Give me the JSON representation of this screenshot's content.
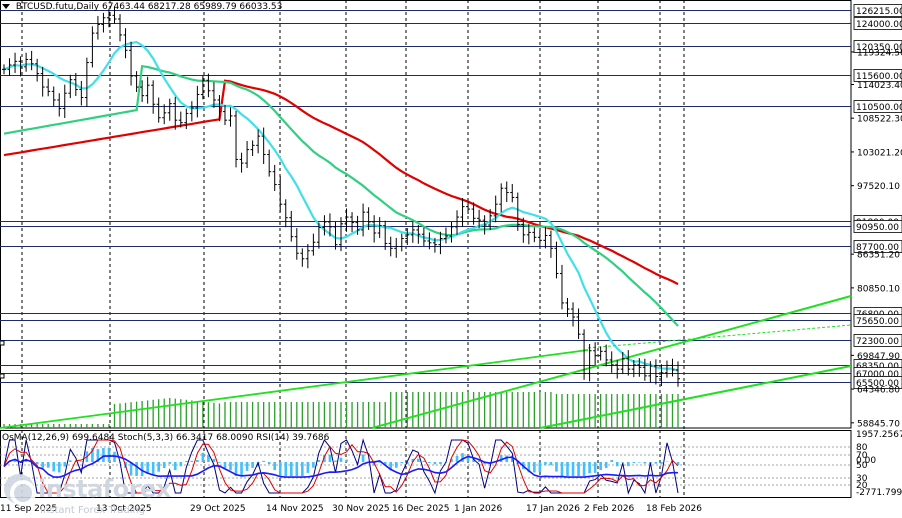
{
  "header": {
    "symbol": "BTCUSD.futu,Daily",
    "ohlc": "67463.44 68217.28 65989.79 66033.53"
  },
  "indicators": {
    "osma": "OsMA(12,26,9)",
    "osma_value": "699.6484",
    "stoch": "Stoch(5,3,3)",
    "stoch_main": "66.3417",
    "stoch_signal": "68.0090",
    "rsi": "RSI(14)",
    "rsi_value": "39.7686"
  },
  "logo": {
    "name": "instaforex",
    "tagline": "Instant Forex Trading"
  },
  "colors": {
    "ma_red": "#e00000",
    "ma_green": "#30d080",
    "ma_cyan": "#40e0e8",
    "channel": "#20e020",
    "bars": "#2aa02a",
    "hist": "#40c0ff",
    "stoch_main": "#000080",
    "stoch_signal": "#e00000",
    "rsi": "#1a1aff"
  },
  "chart_data": {
    "type": "candlestick",
    "x_ticks": [
      "11 Sep 2025",
      "13 Oct 2025",
      "29 Oct 2025",
      "14 Nov 2025",
      "30 Nov 2025",
      "16 Dec 2025",
      "1 Jan 2026",
      "17 Jan 2026",
      "2 Feb 2026",
      "18 Feb 2026"
    ],
    "y_ticks": [
      "126215.00",
      "124000.00",
      "120350.00",
      "119324.50",
      "115600.00",
      "114023.40",
      "110500.00",
      "108522.30",
      "103021.20",
      "97520.10",
      "91800.00",
      "90950.00",
      "87700.00",
      "86351.20",
      "80850.10",
      "76800.00",
      "75650.00",
      "72300.00",
      "69847.90",
      "68350.00",
      "67000.00",
      "65500.00",
      "64346.80",
      "58845.70"
    ],
    "levels": [
      126215,
      124000,
      120350,
      115600,
      110500,
      91800,
      90950,
      87700,
      76800,
      75650,
      72300,
      68350,
      67000,
      65500
    ],
    "y_range": [
      58000,
      127800
    ],
    "indicator_ticks": [
      "1957.2567",
      "80",
      "70",
      "50",
      "30",
      "20",
      "0.00",
      "-2771.799"
    ],
    "closes": [
      116500,
      117200,
      117800,
      116900,
      118100,
      117400,
      115800,
      113600,
      112900,
      111500,
      110100,
      112600,
      114800,
      113200,
      111900,
      117600,
      122400,
      123800,
      124900,
      125300,
      124700,
      122100,
      119600,
      115400,
      113600,
      112200,
      113900,
      110800,
      108600,
      109400,
      110900,
      108200,
      107800,
      109300,
      110200,
      112400,
      114700,
      113000,
      111500,
      109600,
      108200,
      108900,
      101800,
      101200,
      103400,
      104100,
      105600,
      102600,
      99800,
      97700,
      94500,
      92300,
      89200,
      86500,
      85600,
      86900,
      88300,
      90700,
      91600,
      90800,
      87900,
      91300,
      92400,
      91500,
      90300,
      93200,
      91600,
      89800,
      91000,
      88100,
      87300,
      87600,
      88900,
      89500,
      90300,
      89600,
      88500,
      88200,
      87900,
      88900,
      89300,
      90800,
      92400,
      94100,
      93700,
      92200,
      91900,
      91100,
      92600,
      94500,
      97100,
      96400,
      95600,
      91200,
      89500,
      89900,
      89100,
      88600,
      89400,
      87300,
      83200,
      78400,
      77400,
      76100,
      73300,
      66900,
      70600,
      69800,
      70500,
      69100,
      68300,
      67600,
      69300,
      67600,
      68300,
      67900,
      66500,
      68100,
      66400,
      67000,
      68200,
      67463,
      66034
    ],
    "x_start_date": "2025-09-11"
  }
}
